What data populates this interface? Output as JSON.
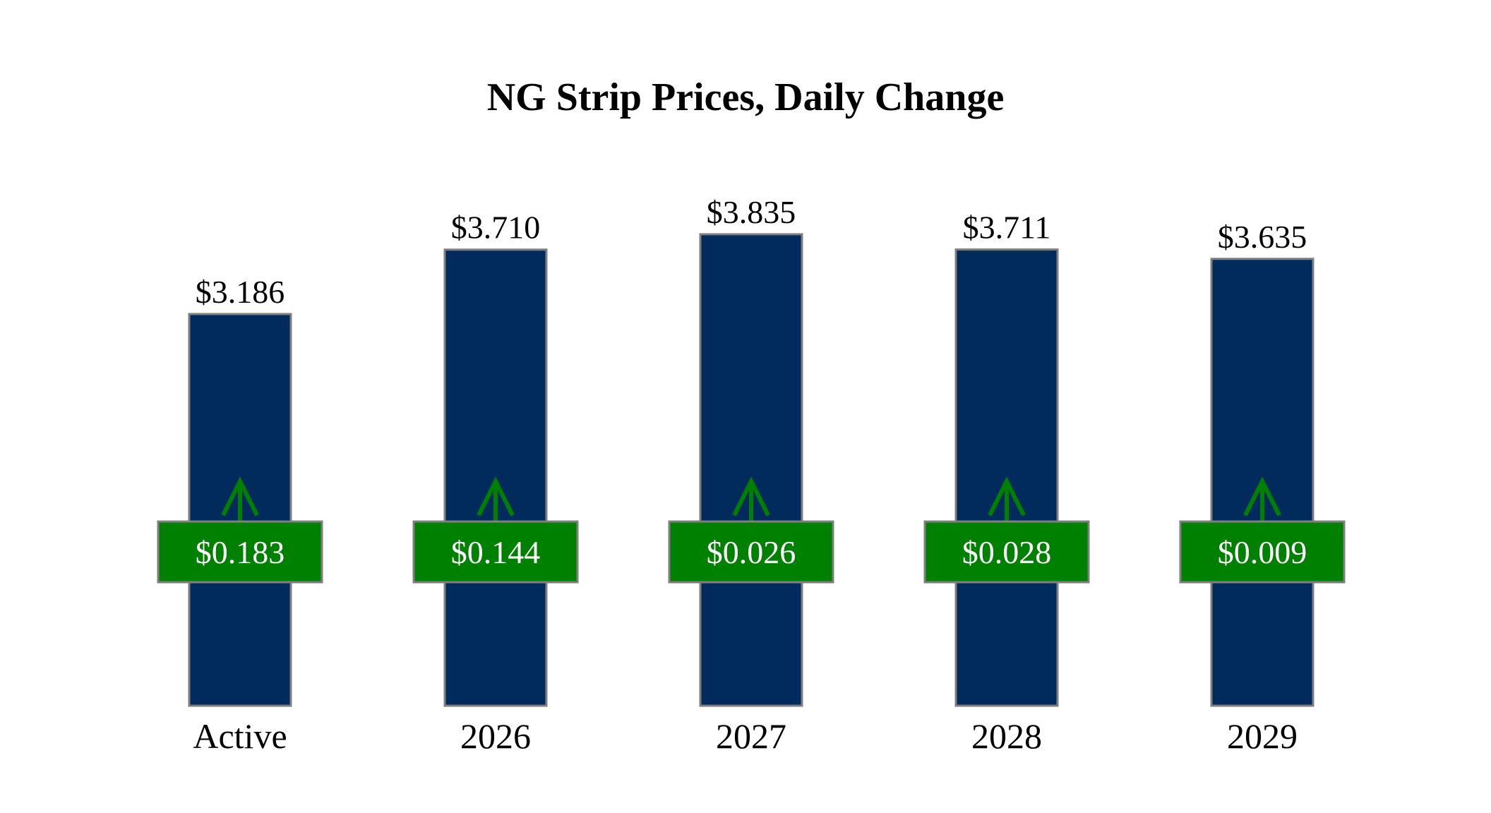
{
  "chart_data": {
    "type": "bar",
    "title": "NG Strip Prices, Daily Change",
    "categories": [
      "Active",
      "2026",
      "2027",
      "2028",
      "2029"
    ],
    "values": [
      3.186,
      3.71,
      3.835,
      3.711,
      3.635
    ],
    "value_labels": [
      "$3.186",
      "$3.710",
      "$3.835",
      "$3.711",
      "$3.635"
    ],
    "changes": [
      0.183,
      0.144,
      0.026,
      0.028,
      0.009
    ],
    "change_labels": [
      "$0.183",
      "$0.144",
      "$0.026",
      "$0.028",
      "$0.009"
    ],
    "change_direction": [
      "up",
      "up",
      "up",
      "up",
      "up"
    ],
    "ylim": [
      0,
      4
    ],
    "grid": false,
    "colors": {
      "bar": "#002b5c",
      "bar_border": "#7f7f7f",
      "change_box": "#008000",
      "change_box_border": "#7f7f7f",
      "arrow": "#008000",
      "change_text": "#ffffff"
    }
  }
}
